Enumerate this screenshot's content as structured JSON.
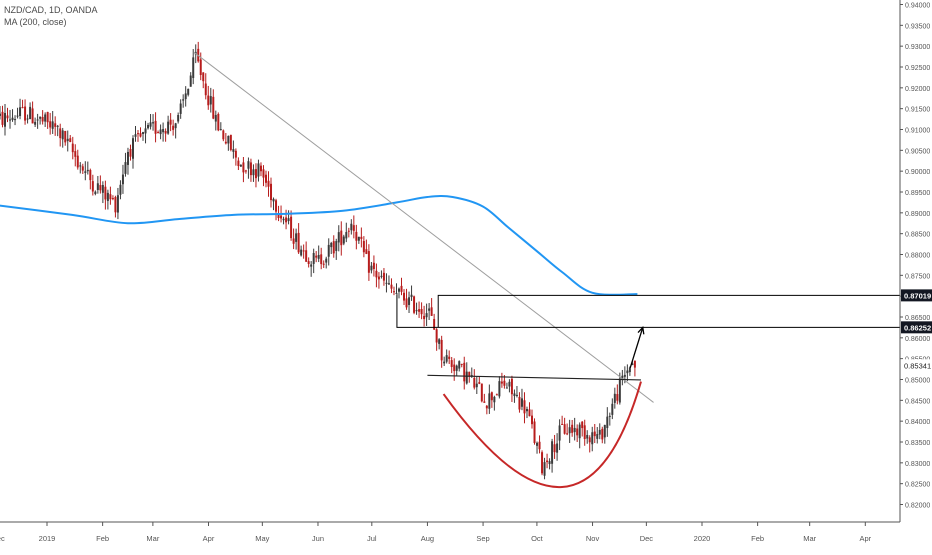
{
  "header": {
    "symbol_line": "NZD/CAD, 1D, OANDA",
    "indicator_line": "MA (200, close)"
  },
  "colors": {
    "up_candle": "#3a3a3a",
    "down_candle": "#b71c1c",
    "ma_line": "#2196f3",
    "trendline": "#9e9e9e",
    "cup_curve": "#c62828",
    "level_box": "#000000",
    "price_tag_bg": "#131722",
    "price_tag_text": "#ffffff"
  },
  "price_tags": [
    {
      "label": "0.87019",
      "value": 0.87019
    },
    {
      "label": "0.86252",
      "value": 0.86252
    },
    {
      "label": "0.85341",
      "value": 0.85341
    }
  ],
  "chart_data": {
    "type": "candlestick",
    "title": "NZD/CAD, 1D, OANDA",
    "indicator": "MA (200, close)",
    "ylim": [
      0.8175,
      0.941
    ],
    "yticks": [
      "0.94000",
      "0.93500",
      "0.93000",
      "0.92500",
      "0.92000",
      "0.91500",
      "0.91000",
      "0.90500",
      "0.90000",
      "0.89500",
      "0.89000",
      "0.88500",
      "0.88000",
      "0.87500",
      "0.87000",
      "0.86500",
      "0.86000",
      "0.85500",
      "0.85000",
      "0.84500",
      "0.84000",
      "0.83500",
      "0.83000",
      "0.82500",
      "0.82000"
    ],
    "xticks": [
      "Dec",
      "2019",
      "Feb",
      "Mar",
      "Apr",
      "May",
      "Jun",
      "Jul",
      "Aug",
      "Sep",
      "Oct",
      "Nov",
      "Dec",
      "2020",
      "Feb",
      "Mar",
      "Apr"
    ],
    "price_path": [
      [
        "2018-12-03",
        0.912
      ],
      [
        "2018-12-20",
        0.914
      ],
      [
        "2019-01-07",
        0.91
      ],
      [
        "2019-01-25",
        0.898
      ],
      [
        "2019-02-08",
        0.892
      ],
      [
        "2019-02-15",
        0.905
      ],
      [
        "2019-02-28",
        0.91
      ],
      [
        "2019-03-15",
        0.912
      ],
      [
        "2019-03-25",
        0.9275
      ],
      [
        "2019-04-05",
        0.912
      ],
      [
        "2019-04-18",
        0.902
      ],
      [
        "2019-04-30",
        0.9
      ],
      [
        "2019-05-10",
        0.891
      ],
      [
        "2019-05-22",
        0.882
      ],
      [
        "2019-05-31",
        0.878
      ],
      [
        "2019-06-10",
        0.882
      ],
      [
        "2019-06-20",
        0.888
      ],
      [
        "2019-06-28",
        0.878
      ],
      [
        "2019-07-10",
        0.872
      ],
      [
        "2019-07-24",
        0.868
      ],
      [
        "2019-08-02",
        0.866
      ],
      [
        "2019-08-09",
        0.856
      ],
      [
        "2019-08-23",
        0.851
      ],
      [
        "2019-09-03",
        0.845
      ],
      [
        "2019-09-13",
        0.849
      ],
      [
        "2019-09-25",
        0.843
      ],
      [
        "2019-10-04",
        0.829
      ],
      [
        "2019-10-15",
        0.838
      ],
      [
        "2019-10-25",
        0.838
      ],
      [
        "2019-11-05",
        0.836
      ],
      [
        "2019-11-12",
        0.844
      ],
      [
        "2019-11-18",
        0.85
      ],
      [
        "2019-11-22",
        0.854
      ],
      [
        "2019-11-26",
        0.8534
      ]
    ],
    "moving_average_200": [
      [
        "2018-12-01",
        0.892
      ],
      [
        "2019-01-15",
        0.8895
      ],
      [
        "2019-02-15",
        0.8875
      ],
      [
        "2019-03-15",
        0.8885
      ],
      [
        "2019-04-15",
        0.8895
      ],
      [
        "2019-05-15",
        0.8898
      ],
      [
        "2019-06-15",
        0.8905
      ],
      [
        "2019-07-15",
        0.8925
      ],
      [
        "2019-08-01",
        0.8938
      ],
      [
        "2019-08-15",
        0.8938
      ],
      [
        "2019-09-01",
        0.8915
      ],
      [
        "2019-09-15",
        0.8865
      ],
      [
        "2019-10-01",
        0.8808
      ],
      [
        "2019-10-15",
        0.8758
      ],
      [
        "2019-11-01",
        0.8708
      ],
      [
        "2019-11-26",
        0.8705
      ]
    ],
    "annotations": {
      "trendline": [
        [
          "2019-03-24",
          0.9285
        ],
        [
          "2019-12-05",
          0.8445
        ]
      ],
      "neckline": [
        [
          "2019-08-01",
          0.851
        ],
        [
          "2019-11-28",
          0.8499
        ]
      ],
      "cup_curve": [
        [
          "2019-08-10",
          0.8465
        ],
        [
          "2019-10-15",
          0.8242
        ],
        [
          "2019-11-28",
          0.8495
        ]
      ],
      "upper_box": {
        "from": "2019-08-07",
        "top": 0.87019,
        "bottom": 0.86252
      },
      "lower_step": {
        "from": "2019-07-15",
        "level": 0.86252,
        "step_from": 0.8705
      },
      "arrow": [
        [
          "2019-11-22",
          0.8528
        ],
        [
          "2019-11-29",
          0.8625
        ]
      ]
    },
    "grid": false
  }
}
